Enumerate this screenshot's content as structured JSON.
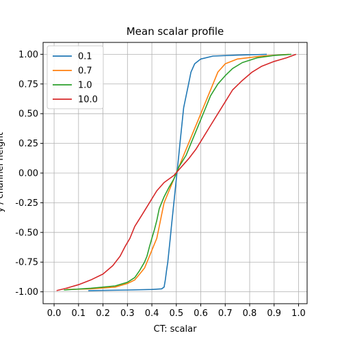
{
  "chart_data": {
    "type": "line",
    "title": "Mean scalar profile",
    "xlabel": "CT: scalar",
    "ylabel": "y / channel height",
    "xlim": [
      -0.045,
      1.035
    ],
    "ylim": [
      -1.1,
      1.1
    ],
    "xticks": [
      "0.0",
      "0.1",
      "0.2",
      "0.3",
      "0.4",
      "0.5",
      "0.6",
      "0.7",
      "0.8",
      "0.9",
      "1.0"
    ],
    "yticks": [
      "-1.00",
      "-0.75",
      "-0.50",
      "-0.25",
      "0.00",
      "0.25",
      "0.50",
      "0.75",
      "1.00"
    ],
    "grid": true,
    "legend_position": "top-left",
    "series": [
      {
        "name": "0.1",
        "color": "#1f77b4",
        "points": [
          [
            0.14,
            -0.99
          ],
          [
            0.3,
            -0.985
          ],
          [
            0.4,
            -0.98
          ],
          [
            0.44,
            -0.975
          ],
          [
            0.45,
            -0.96
          ],
          [
            0.455,
            -0.9
          ],
          [
            0.46,
            -0.82
          ],
          [
            0.465,
            -0.75
          ],
          [
            0.47,
            -0.65
          ],
          [
            0.475,
            -0.55
          ],
          [
            0.48,
            -0.45
          ],
          [
            0.485,
            -0.35
          ],
          [
            0.49,
            -0.25
          ],
          [
            0.495,
            -0.15
          ],
          [
            0.5,
            -0.05
          ],
          [
            0.505,
            0.05
          ],
          [
            0.51,
            0.15
          ],
          [
            0.515,
            0.25
          ],
          [
            0.52,
            0.35
          ],
          [
            0.525,
            0.45
          ],
          [
            0.53,
            0.55
          ],
          [
            0.54,
            0.65
          ],
          [
            0.55,
            0.75
          ],
          [
            0.56,
            0.85
          ],
          [
            0.575,
            0.92
          ],
          [
            0.6,
            0.96
          ],
          [
            0.65,
            0.985
          ],
          [
            0.75,
            0.993
          ],
          [
            0.87,
            1.0
          ]
        ]
      },
      {
        "name": "0.7",
        "color": "#ff7f0e",
        "points": [
          [
            0.05,
            -0.98
          ],
          [
            0.15,
            -0.975
          ],
          [
            0.25,
            -0.96
          ],
          [
            0.3,
            -0.93
          ],
          [
            0.33,
            -0.9
          ],
          [
            0.35,
            -0.85
          ],
          [
            0.37,
            -0.8
          ],
          [
            0.38,
            -0.75
          ],
          [
            0.39,
            -0.7
          ],
          [
            0.4,
            -0.65
          ],
          [
            0.41,
            -0.6
          ],
          [
            0.42,
            -0.55
          ],
          [
            0.43,
            -0.45
          ],
          [
            0.44,
            -0.35
          ],
          [
            0.45,
            -0.25
          ],
          [
            0.47,
            -0.15
          ],
          [
            0.49,
            -0.05
          ],
          [
            0.51,
            0.05
          ],
          [
            0.53,
            0.15
          ],
          [
            0.55,
            0.25
          ],
          [
            0.57,
            0.35
          ],
          [
            0.59,
            0.45
          ],
          [
            0.61,
            0.55
          ],
          [
            0.63,
            0.65
          ],
          [
            0.65,
            0.75
          ],
          [
            0.67,
            0.85
          ],
          [
            0.7,
            0.92
          ],
          [
            0.75,
            0.96
          ],
          [
            0.85,
            0.985
          ],
          [
            0.96,
            1.0
          ]
        ]
      },
      {
        "name": "1.0",
        "color": "#2ca02c",
        "points": [
          [
            0.04,
            -0.985
          ],
          [
            0.15,
            -0.97
          ],
          [
            0.25,
            -0.95
          ],
          [
            0.3,
            -0.92
          ],
          [
            0.33,
            -0.88
          ],
          [
            0.35,
            -0.82
          ],
          [
            0.37,
            -0.75
          ],
          [
            0.38,
            -0.7
          ],
          [
            0.39,
            -0.62
          ],
          [
            0.4,
            -0.55
          ],
          [
            0.41,
            -0.48
          ],
          [
            0.42,
            -0.4
          ],
          [
            0.43,
            -0.3
          ],
          [
            0.45,
            -0.2
          ],
          [
            0.47,
            -0.12
          ],
          [
            0.49,
            -0.05
          ],
          [
            0.51,
            0.05
          ],
          [
            0.54,
            0.15
          ],
          [
            0.56,
            0.25
          ],
          [
            0.58,
            0.35
          ],
          [
            0.6,
            0.45
          ],
          [
            0.62,
            0.55
          ],
          [
            0.64,
            0.65
          ],
          [
            0.67,
            0.75
          ],
          [
            0.7,
            0.82
          ],
          [
            0.73,
            0.88
          ],
          [
            0.77,
            0.93
          ],
          [
            0.83,
            0.97
          ],
          [
            0.9,
            0.99
          ],
          [
            0.97,
            1.0
          ]
        ]
      },
      {
        "name": "10.0",
        "color": "#d62728",
        "points": [
          [
            0.01,
            -0.99
          ],
          [
            0.05,
            -0.97
          ],
          [
            0.1,
            -0.94
          ],
          [
            0.15,
            -0.9
          ],
          [
            0.2,
            -0.85
          ],
          [
            0.24,
            -0.78
          ],
          [
            0.27,
            -0.7
          ],
          [
            0.29,
            -0.62
          ],
          [
            0.31,
            -0.55
          ],
          [
            0.33,
            -0.45
          ],
          [
            0.36,
            -0.35
          ],
          [
            0.39,
            -0.25
          ],
          [
            0.42,
            -0.15
          ],
          [
            0.45,
            -0.08
          ],
          [
            0.49,
            -0.02
          ],
          [
            0.52,
            0.05
          ],
          [
            0.55,
            0.12
          ],
          [
            0.58,
            0.2
          ],
          [
            0.61,
            0.3
          ],
          [
            0.64,
            0.4
          ],
          [
            0.67,
            0.5
          ],
          [
            0.7,
            0.6
          ],
          [
            0.73,
            0.7
          ],
          [
            0.77,
            0.78
          ],
          [
            0.81,
            0.85
          ],
          [
            0.85,
            0.9
          ],
          [
            0.9,
            0.94
          ],
          [
            0.95,
            0.97
          ],
          [
            0.99,
            1.0
          ]
        ]
      }
    ]
  }
}
